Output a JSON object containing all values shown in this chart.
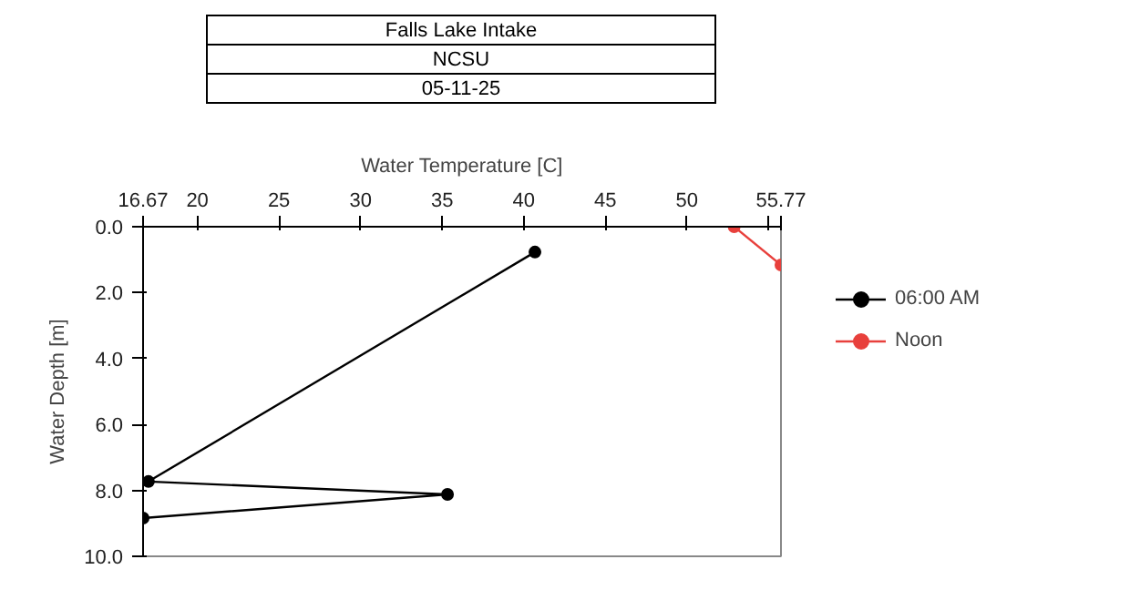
{
  "chart_data": {
    "type": "line",
    "title": "Falls Lake Intake",
    "subtitle": "NCSU",
    "annotations": [
      "05-11-25"
    ],
    "xlabel": "Water Temperature [C]",
    "ylabel": "Water Depth [m]",
    "xlim": [
      16.67,
      55.77
    ],
    "xticks": [
      16.67,
      20,
      25,
      30,
      35,
      40,
      45,
      50,
      {
        "value": 55,
        "label": null
      },
      55.77
    ],
    "ylim": [
      10,
      0
    ],
    "yticks": [
      {
        "value": 0,
        "label": "0.0"
      },
      {
        "value": 2,
        "label": "2.0"
      },
      {
        "value": 4,
        "label": "4.0"
      },
      {
        "value": 6,
        "label": "6.0"
      },
      {
        "value": 8,
        "label": "8.0"
      },
      {
        "value": 10,
        "label": "10.0"
      }
    ],
    "grid": false,
    "legend": "top right",
    "marker": "circle",
    "line_style": "solid",
    "series": [
      {
        "name": "06:00 AM",
        "color": "#000000",
        "x": [
          40.69,
          17.0,
          35.33,
          16.67
        ],
        "values": [
          0.77,
          7.73,
          8.12,
          8.84
        ]
      },
      {
        "name": "Noon",
        "color": "#e8403c",
        "x": [
          52.9,
          55.77
        ],
        "values": [
          0.0,
          1.16
        ]
      }
    ]
  }
}
